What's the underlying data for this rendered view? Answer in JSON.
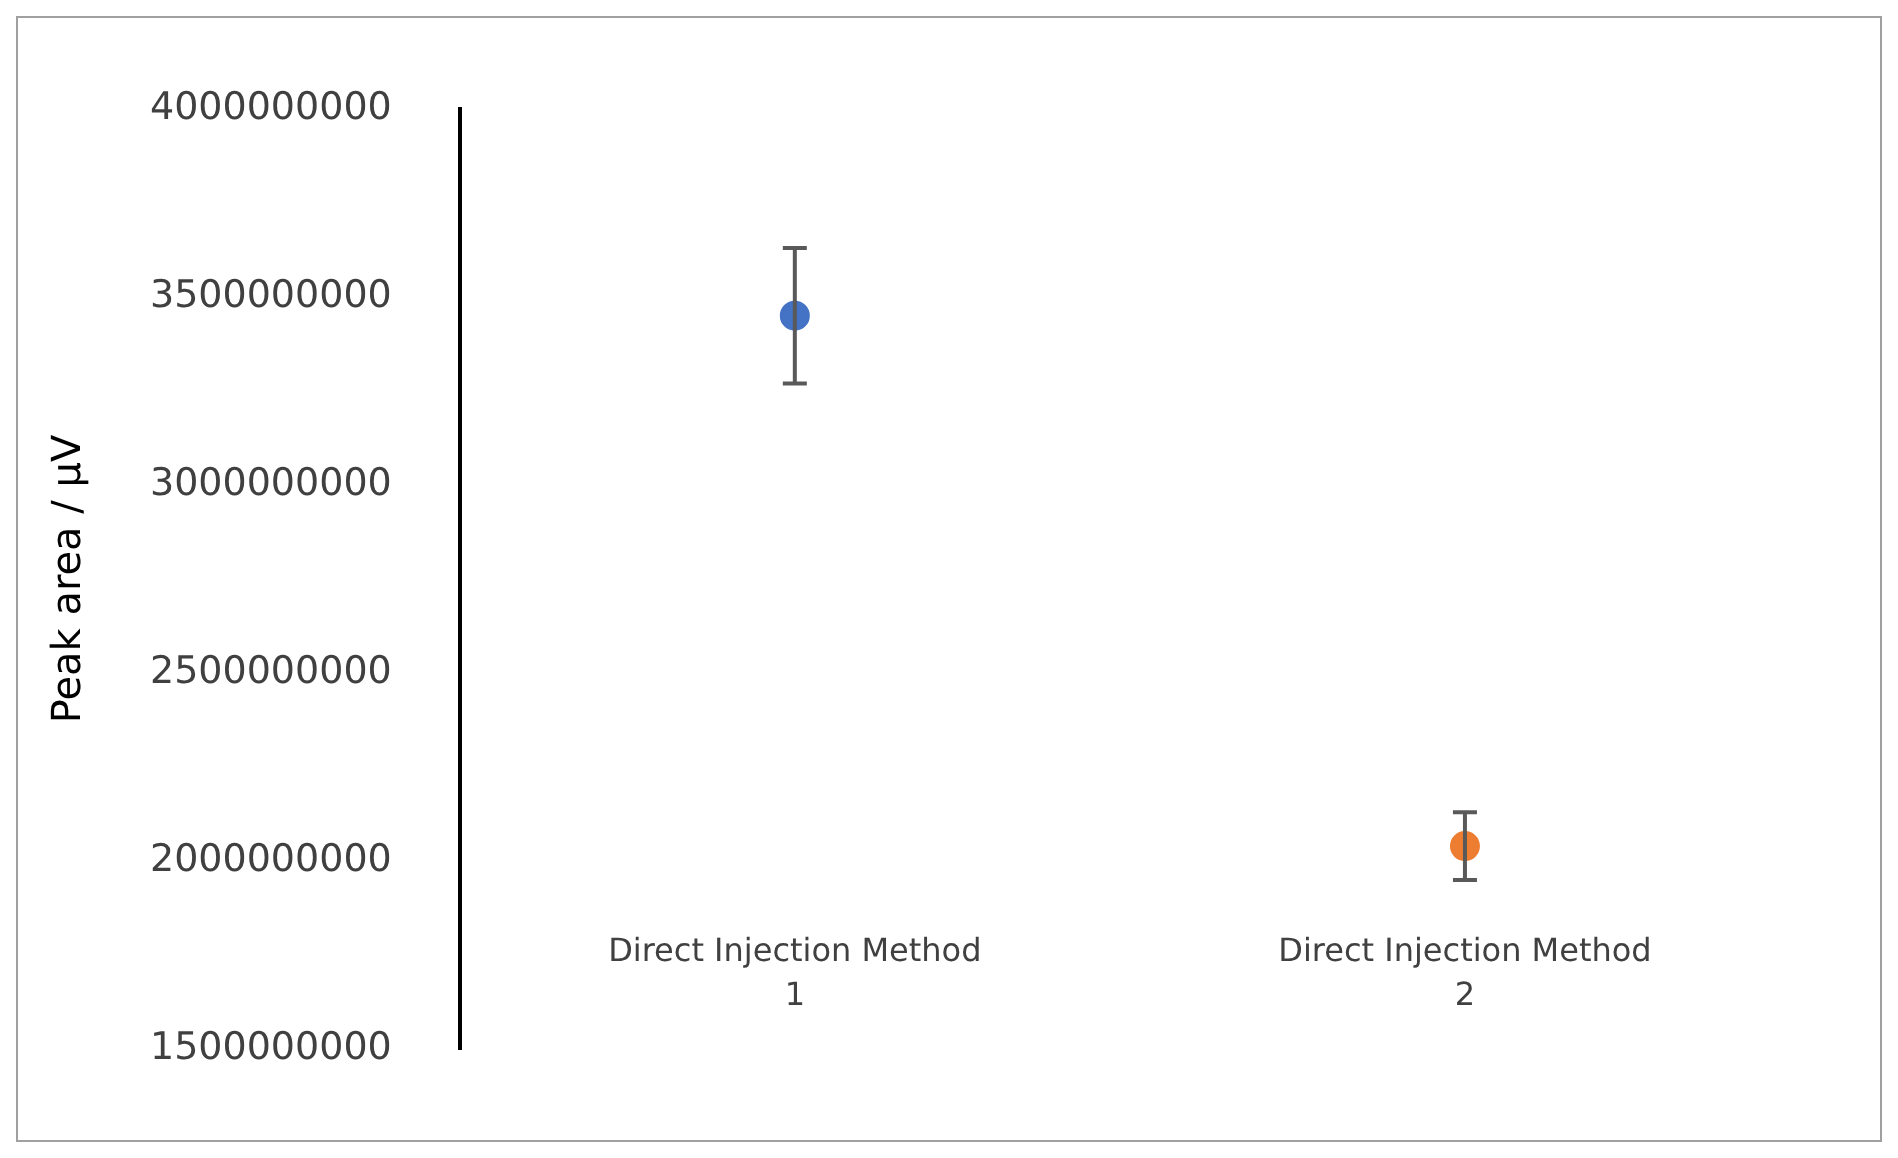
{
  "chart_data": {
    "type": "scatter",
    "ylabel": "Peak area / µV",
    "categories": [
      "Direct Injection Method 1",
      "Direct Injection Method 2"
    ],
    "values": [
      3450000000,
      2040000000
    ],
    "colors": [
      "#4472c4",
      "#ed7d31"
    ],
    "errors": [
      180000000,
      90000000
    ],
    "ylim": [
      1500000000,
      4000000000
    ],
    "yticks": [
      1500000000,
      2000000000,
      2500000000,
      3000000000,
      3500000000,
      4000000000
    ],
    "grid": false,
    "legend": false,
    "marker": "circle"
  }
}
